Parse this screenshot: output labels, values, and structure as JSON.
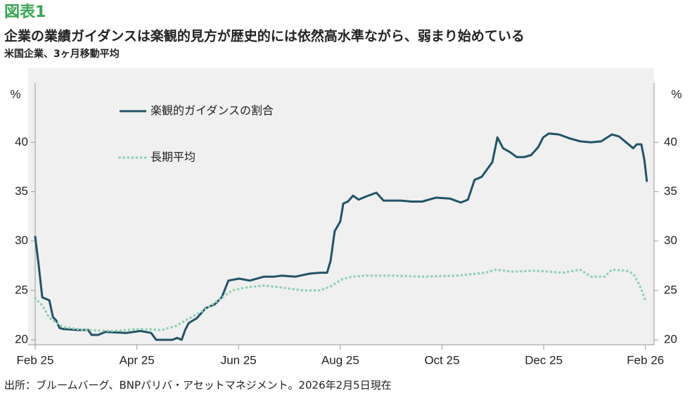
{
  "chart_data": {
    "type": "line",
    "figure_label": "図表1",
    "title": "企業の業績ガイダンスは楽観的見方が歴史的には依然高水準ながら、弱まり始めている",
    "subtitle": "米国企業、3ヶ月移動平均",
    "source": "出所：ブルームバーグ、BNPパリバ・アセットマネジメント。2026年2月5日現在",
    "y_label": "%",
    "y2_label": "%",
    "xlim": [
      0,
      12.1
    ],
    "xticks": [
      {
        "value": 0,
        "label": "Feb 25"
      },
      {
        "value": 2,
        "label": "Apr 25"
      },
      {
        "value": 4,
        "label": "Jun 25"
      },
      {
        "value": 6,
        "label": "Aug 25"
      },
      {
        "value": 8,
        "label": "Oct 25"
      },
      {
        "value": 10,
        "label": "Dec 25"
      },
      {
        "value": 12,
        "label": "Feb 26"
      }
    ],
    "ylim": [
      20,
      42.3
    ],
    "yticks": [
      20,
      25,
      30,
      35,
      40
    ],
    "y2lim": [
      20,
      42.3
    ],
    "y2ticks": [
      20,
      25,
      30,
      35,
      40
    ],
    "legend_position": "upper left",
    "series": [
      {
        "name": "楽観的ガイダンスの割合",
        "color": "#1f5468",
        "style": "solid",
        "x": [
          0,
          0.07,
          0.14,
          0.28,
          0.35,
          0.41,
          0.48,
          0.55,
          0.83,
          1.04,
          1.11,
          1.24,
          1.38,
          1.8,
          2.07,
          2.28,
          2.38,
          2.7,
          2.79,
          2.88,
          2.95,
          3.02,
          3.18,
          3.35,
          3.53,
          3.67,
          3.8,
          4.01,
          4.22,
          4.5,
          4.7,
          4.84,
          5.12,
          5.39,
          5.6,
          5.74,
          5.81,
          5.89,
          6.0,
          6.06,
          6.15,
          6.25,
          6.36,
          6.5,
          6.71,
          6.85,
          7.19,
          7.4,
          7.61,
          7.88,
          8.16,
          8.37,
          8.51,
          8.64,
          8.78,
          8.85,
          8.99,
          9.09,
          9.2,
          9.34,
          9.47,
          9.61,
          9.75,
          9.89,
          9.99,
          10.1,
          10.3,
          10.51,
          10.72,
          10.93,
          11.13,
          11.34,
          11.48,
          11.62,
          11.76,
          11.83,
          11.92,
          11.98,
          12.03
        ],
        "values": [
          30.5,
          27.5,
          24.3,
          24,
          22.3,
          22,
          21.2,
          21.1,
          21,
          21,
          20.5,
          20.5,
          20.8,
          20.7,
          20.9,
          20.7,
          20,
          20,
          20.2,
          20,
          21,
          21.7,
          22.2,
          23.2,
          23.6,
          24.3,
          26,
          26.2,
          26,
          26.4,
          26.4,
          26.5,
          26.4,
          26.7,
          26.8,
          26.8,
          28,
          31,
          32,
          33.8,
          34,
          34.6,
          34.2,
          34.5,
          34.9,
          34.1,
          34.1,
          34,
          34,
          34.4,
          34.3,
          33.9,
          34.2,
          36.2,
          36.5,
          37,
          38,
          40.5,
          39.4,
          39,
          38.5,
          38.5,
          38.7,
          39.5,
          40.5,
          40.9,
          40.8,
          40.4,
          40.1,
          40,
          40.1,
          40.8,
          40.6,
          40,
          39.4,
          39.8,
          39.8,
          38.2,
          36
        ]
      },
      {
        "name": "長期平均",
        "color": "#8fd1b3",
        "style": "dotted",
        "x": [
          0,
          0.14,
          0.28,
          0.55,
          0.97,
          1.52,
          2.07,
          2.49,
          2.77,
          3.04,
          3.32,
          3.6,
          3.87,
          4.15,
          4.5,
          4.84,
          5.26,
          5.6,
          5.81,
          6.02,
          6.22,
          6.5,
          7.05,
          7.61,
          8.3,
          8.85,
          9.06,
          9.4,
          9.82,
          10.37,
          10.72,
          10.93,
          11.2,
          11.34,
          11.62,
          11.76,
          11.89,
          12.0
        ],
        "values": [
          24.2,
          23.5,
          22.2,
          21.3,
          21,
          20.9,
          21.1,
          21,
          21.4,
          22.2,
          23,
          24,
          25,
          25.3,
          25.5,
          25.3,
          25,
          25,
          25.4,
          26.1,
          26.4,
          26.5,
          26.5,
          26.4,
          26.5,
          26.8,
          27.1,
          26.9,
          27,
          26.8,
          27.1,
          26.4,
          26.4,
          27.1,
          27,
          26.7,
          25.5,
          24
        ]
      }
    ]
  }
}
